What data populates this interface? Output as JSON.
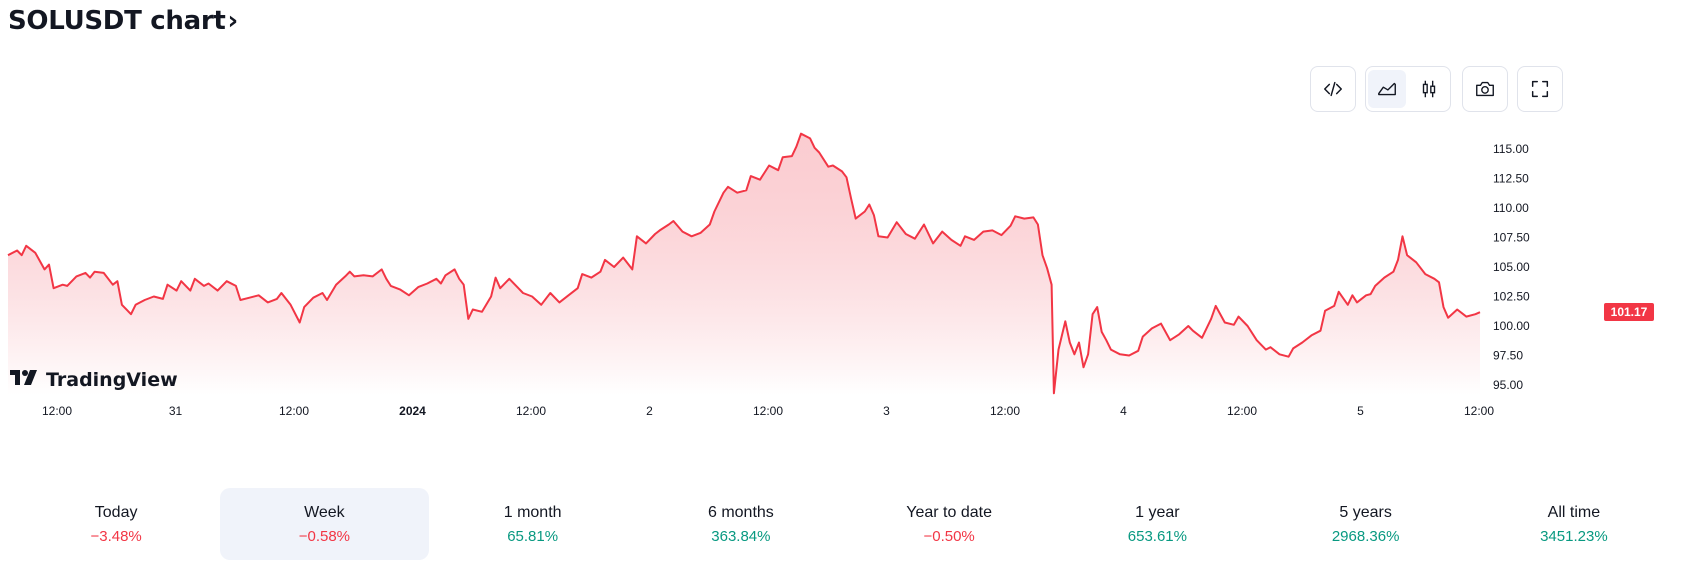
{
  "header": {
    "title": "SOLUSDT chart",
    "chevron": "›"
  },
  "toolbar": {
    "embed": "code-icon",
    "area_chart": "area-chart-icon",
    "candles": "candlestick-icon",
    "snapshot": "camera-icon",
    "fullscreen": "fullscreen-icon"
  },
  "logo": {
    "mark": "TV",
    "text": "TradingView"
  },
  "colors": {
    "line": "#f23645",
    "fill_top": "#f7a3ab",
    "fill_bottom": "#ffffff",
    "positive": "#089981",
    "negative": "#f23645"
  },
  "chart_data": {
    "type": "area",
    "ylim": [
      94,
      117
    ],
    "y_ticks": [
      "115.00",
      "112.50",
      "110.00",
      "107.50",
      "105.00",
      "102.50",
      "100.00",
      "97.50",
      "95.00"
    ],
    "y_tick_values": [
      115,
      112.5,
      110,
      107.5,
      105,
      102.5,
      100,
      97.5,
      95
    ],
    "x_ticks": [
      "12:00",
      "31",
      "12:00",
      "2024",
      "12:00",
      "2",
      "12:00",
      "3",
      "12:00",
      "4",
      "12:00",
      "5",
      "12:00"
    ],
    "x_tick_bold": [
      false,
      false,
      false,
      true,
      false,
      false,
      false,
      false,
      false,
      false,
      false,
      false,
      false
    ],
    "last_price": "101.17",
    "last_value": 101.17,
    "points": [
      [
        0,
        106.0
      ],
      [
        2,
        106.4
      ],
      [
        3,
        106.0
      ],
      [
        4,
        106.8
      ],
      [
        6,
        106.2
      ],
      [
        8,
        104.8
      ],
      [
        9,
        105.2
      ],
      [
        10,
        103.2
      ],
      [
        12,
        103.5
      ],
      [
        13,
        103.4
      ],
      [
        15,
        104.2
      ],
      [
        17,
        104.5
      ],
      [
        18,
        104.1
      ],
      [
        19,
        104.6
      ],
      [
        21,
        104.5
      ],
      [
        23,
        103.5
      ],
      [
        24,
        103.8
      ],
      [
        25,
        101.8
      ],
      [
        27,
        101.0
      ],
      [
        28,
        101.8
      ],
      [
        30,
        102.2
      ],
      [
        32,
        102.5
      ],
      [
        34,
        102.3
      ],
      [
        35,
        103.5
      ],
      [
        37,
        103.0
      ],
      [
        38,
        103.8
      ],
      [
        40,
        103.0
      ],
      [
        41,
        104.0
      ],
      [
        43,
        103.4
      ],
      [
        44,
        103.6
      ],
      [
        46,
        103.0
      ],
      [
        48,
        103.8
      ],
      [
        50,
        103.4
      ],
      [
        51,
        102.2
      ],
      [
        53,
        102.4
      ],
      [
        55,
        102.6
      ],
      [
        57,
        102.0
      ],
      [
        59,
        102.3
      ],
      [
        60,
        102.8
      ],
      [
        62,
        101.8
      ],
      [
        64,
        100.3
      ],
      [
        65,
        101.6
      ],
      [
        67,
        102.4
      ],
      [
        69,
        102.8
      ],
      [
        70,
        102.2
      ],
      [
        72,
        103.5
      ],
      [
        74,
        104.2
      ],
      [
        75,
        104.6
      ],
      [
        76,
        104.2
      ],
      [
        78,
        104.3
      ],
      [
        80,
        104.2
      ],
      [
        82,
        104.8
      ],
      [
        83,
        104.0
      ],
      [
        84,
        103.4
      ],
      [
        86,
        103.1
      ],
      [
        88,
        102.6
      ],
      [
        90,
        103.3
      ],
      [
        92,
        103.6
      ],
      [
        94,
        104.0
      ],
      [
        95,
        103.6
      ],
      [
        96,
        104.3
      ],
      [
        98,
        104.8
      ],
      [
        99,
        104.0
      ],
      [
        100,
        103.5
      ],
      [
        101,
        100.6
      ],
      [
        102,
        101.4
      ],
      [
        104,
        101.2
      ],
      [
        106,
        102.5
      ],
      [
        107,
        104.1
      ],
      [
        108,
        103.2
      ],
      [
        110,
        104.0
      ],
      [
        112,
        103.2
      ],
      [
        113,
        102.8
      ],
      [
        115,
        102.5
      ],
      [
        117,
        101.8
      ],
      [
        119,
        102.8
      ],
      [
        121,
        102.0
      ],
      [
        123,
        102.6
      ],
      [
        125,
        103.2
      ],
      [
        126,
        104.4
      ],
      [
        128,
        104.1
      ],
      [
        130,
        104.6
      ],
      [
        131,
        105.6
      ],
      [
        133,
        105.0
      ],
      [
        135,
        105.8
      ],
      [
        137,
        104.8
      ],
      [
        138,
        107.6
      ],
      [
        140,
        107.0
      ],
      [
        142,
        107.8
      ],
      [
        143,
        108.1
      ],
      [
        145,
        108.6
      ],
      [
        146,
        108.9
      ],
      [
        148,
        108.0
      ],
      [
        150,
        107.6
      ],
      [
        152,
        107.9
      ],
      [
        154,
        108.6
      ],
      [
        155,
        109.7
      ],
      [
        157,
        111.3
      ],
      [
        158,
        111.8
      ],
      [
        160,
        111.3
      ],
      [
        162,
        111.5
      ],
      [
        163,
        112.7
      ],
      [
        165,
        112.4
      ],
      [
        167,
        113.6
      ],
      [
        169,
        113.2
      ],
      [
        170,
        114.3
      ],
      [
        172,
        114.4
      ],
      [
        173,
        115.2
      ],
      [
        174,
        116.3
      ],
      [
        176,
        115.9
      ],
      [
        177,
        115.1
      ],
      [
        178,
        114.7
      ],
      [
        180,
        113.5
      ],
      [
        181,
        113.6
      ],
      [
        183,
        113.1
      ],
      [
        184,
        112.6
      ],
      [
        185,
        110.8
      ],
      [
        186,
        109.1
      ],
      [
        188,
        109.7
      ],
      [
        189,
        110.3
      ],
      [
        190,
        109.4
      ],
      [
        191,
        107.6
      ],
      [
        193,
        107.5
      ],
      [
        195,
        108.8
      ],
      [
        197,
        107.8
      ],
      [
        199,
        107.4
      ],
      [
        201,
        108.6
      ],
      [
        203,
        107.0
      ],
      [
        205,
        108.0
      ],
      [
        207,
        107.3
      ],
      [
        209,
        106.8
      ],
      [
        210,
        107.6
      ],
      [
        212,
        107.3
      ],
      [
        214,
        108.0
      ],
      [
        216,
        108.1
      ],
      [
        218,
        107.7
      ],
      [
        220,
        108.5
      ],
      [
        221,
        109.3
      ],
      [
        223,
        109.1
      ],
      [
        225,
        109.2
      ],
      [
        226,
        108.6
      ],
      [
        227,
        106.0
      ],
      [
        228,
        104.9
      ],
      [
        229,
        103.5
      ],
      [
        229.5,
        94.3
      ],
      [
        230.5,
        98.0
      ],
      [
        232,
        100.4
      ],
      [
        233,
        98.6
      ],
      [
        234,
        97.6
      ],
      [
        235,
        98.6
      ],
      [
        236,
        96.5
      ],
      [
        237,
        97.6
      ],
      [
        238,
        101.0
      ],
      [
        239,
        101.6
      ],
      [
        240,
        99.5
      ],
      [
        241,
        98.8
      ],
      [
        242,
        98.0
      ],
      [
        244,
        97.6
      ],
      [
        246,
        97.5
      ],
      [
        248,
        97.9
      ],
      [
        249,
        99.1
      ],
      [
        251,
        99.8
      ],
      [
        253,
        100.2
      ],
      [
        255,
        98.8
      ],
      [
        257,
        99.3
      ],
      [
        259,
        100.0
      ],
      [
        260,
        99.6
      ],
      [
        262,
        99.0
      ],
      [
        264,
        100.6
      ],
      [
        265,
        101.7
      ],
      [
        267,
        100.3
      ],
      [
        269,
        100.1
      ],
      [
        270,
        100.8
      ],
      [
        272,
        100.0
      ],
      [
        274,
        98.8
      ],
      [
        276,
        98.0
      ],
      [
        277,
        98.2
      ],
      [
        279,
        97.6
      ],
      [
        281,
        97.4
      ],
      [
        282,
        98.1
      ],
      [
        284,
        98.6
      ],
      [
        286,
        99.2
      ],
      [
        288,
        99.6
      ],
      [
        289,
        101.3
      ],
      [
        291,
        101.7
      ],
      [
        292,
        102.9
      ],
      [
        294,
        101.8
      ],
      [
        295,
        102.6
      ],
      [
        296,
        102.0
      ],
      [
        298,
        102.6
      ],
      [
        299,
        102.7
      ],
      [
        300,
        103.4
      ],
      [
        302,
        104.1
      ],
      [
        304,
        104.6
      ],
      [
        305,
        105.6
      ],
      [
        306,
        107.6
      ],
      [
        307,
        106.0
      ],
      [
        309,
        105.4
      ],
      [
        311,
        104.4
      ],
      [
        313,
        104.0
      ],
      [
        314,
        103.7
      ],
      [
        315,
        101.6
      ],
      [
        316,
        100.7
      ],
      [
        318,
        101.4
      ],
      [
        320,
        100.8
      ],
      [
        322,
        101.0
      ],
      [
        323,
        101.17
      ]
    ],
    "x_domain": [
      0,
      323
    ]
  },
  "periods": [
    {
      "label": "Today",
      "value": "−3.48%",
      "sign": "neg"
    },
    {
      "label": "Week",
      "value": "−0.58%",
      "sign": "neg",
      "active": true
    },
    {
      "label": "1 month",
      "value": "65.81%",
      "sign": "pos"
    },
    {
      "label": "6 months",
      "value": "363.84%",
      "sign": "pos"
    },
    {
      "label": "Year to date",
      "value": "−0.50%",
      "sign": "neg"
    },
    {
      "label": "1 year",
      "value": "653.61%",
      "sign": "pos"
    },
    {
      "label": "5 years",
      "value": "2968.36%",
      "sign": "pos"
    },
    {
      "label": "All time",
      "value": "3451.23%",
      "sign": "pos"
    }
  ]
}
